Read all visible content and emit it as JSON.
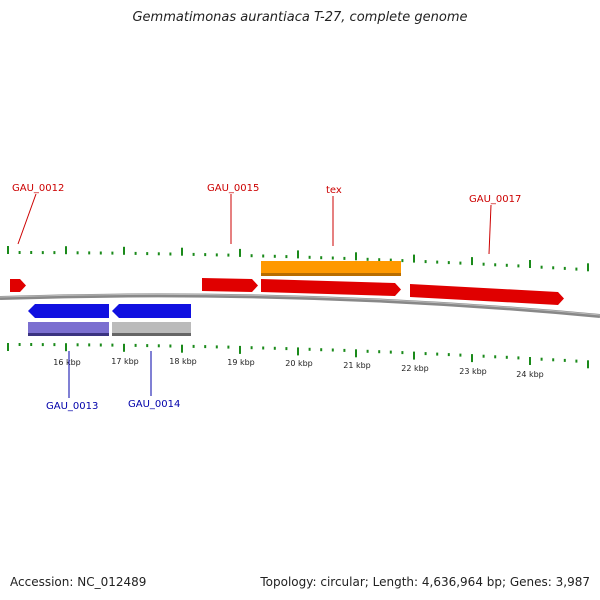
{
  "title": "Gemmatimonas aurantiaca T-27, complete genome",
  "accession_label": "Accession: NC_012489",
  "summary_label": "Topology: circular; Length: 4,636,964 bp; Genes: 3,987",
  "colors": {
    "forward_gene": "#e00000",
    "reverse_gene": "#1010e0",
    "tex_gene": "#ff9900",
    "reverse_secondary": "#7b6fd0",
    "gray_feature": "#bbbbbb",
    "tick": "#1a8a1a",
    "backbone": "#888888",
    "forward_label": "#cc0000",
    "reverse_label": "#0000aa"
  },
  "scale_labels": [
    "16 kbp",
    "17 kbp",
    "18 kbp",
    "19 kbp",
    "20 kbp",
    "21 kbp",
    "22 kbp",
    "23 kbp",
    "24 kbp"
  ],
  "forward_gene_labels": [
    "GAU_0012",
    "GAU_0015",
    "tex",
    "GAU_0017"
  ],
  "reverse_gene_labels": [
    "GAU_0013",
    "GAU_0014"
  ]
}
